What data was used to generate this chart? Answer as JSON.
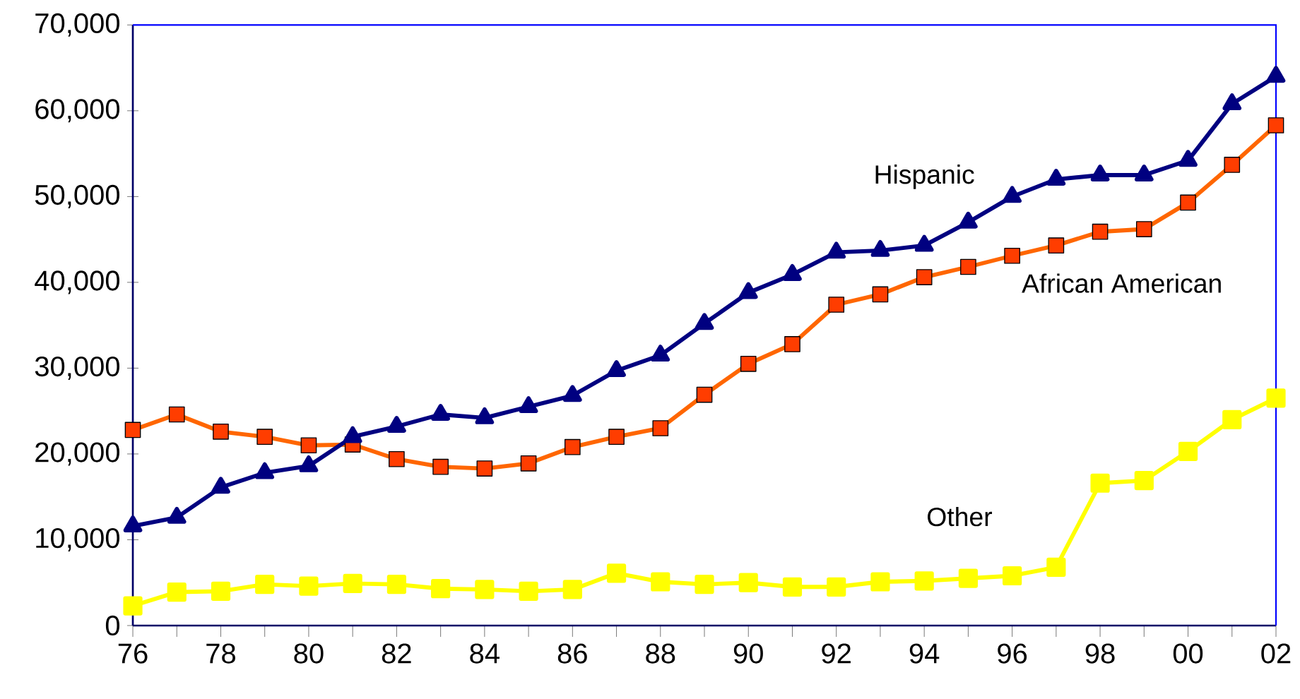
{
  "chart_data": {
    "type": "line",
    "categories": [
      "76",
      null,
      "78",
      null,
      "80",
      null,
      "82",
      null,
      "84",
      null,
      "86",
      null,
      "88",
      null,
      "90",
      null,
      "92",
      null,
      "94",
      null,
      "96",
      null,
      "98",
      null,
      "00",
      null,
      "02"
    ],
    "series": [
      {
        "name": "Hispanic",
        "color": "#000080",
        "marker": "triangle",
        "values": [
          11600,
          12600,
          16100,
          17800,
          18600,
          22000,
          23200,
          24600,
          24200,
          25500,
          26800,
          29700,
          31500,
          35200,
          38800,
          40900,
          43500,
          43700,
          44300,
          47000,
          50000,
          52000,
          52500,
          52500,
          54200,
          60800,
          64000
        ]
      },
      {
        "name": "African American",
        "color": "#ff6600",
        "marker": "square",
        "values": [
          22800,
          24600,
          22600,
          22000,
          21000,
          21100,
          19400,
          18500,
          18300,
          18900,
          20800,
          22000,
          23000,
          26900,
          30500,
          32800,
          37400,
          38600,
          40600,
          41800,
          43100,
          44300,
          45900,
          46200,
          49300,
          53700,
          58300
        ]
      },
      {
        "name": "Other",
        "color": "#ffff00",
        "marker": "square",
        "values": [
          2300,
          3900,
          4000,
          4800,
          4600,
          4900,
          4800,
          4300,
          4200,
          4000,
          4200,
          6100,
          5100,
          4800,
          5000,
          4500,
          4500,
          5100,
          5200,
          5500,
          5800,
          6800,
          16600,
          16900,
          20300,
          24000,
          26500
        ]
      }
    ],
    "ylim": [
      0,
      70000
    ],
    "yticks": [
      {
        "value": 0,
        "label": "0"
      },
      {
        "value": 10000,
        "label": "10,000"
      },
      {
        "value": 20000,
        "label": "20,000"
      },
      {
        "value": 30000,
        "label": "30,000"
      },
      {
        "value": 40000,
        "label": "40,000"
      },
      {
        "value": 50000,
        "label": "50,000"
      },
      {
        "value": 60000,
        "label": "60,000"
      },
      {
        "value": 70000,
        "label": "70,000"
      }
    ],
    "grid": false,
    "legend": false,
    "line_style": "solid"
  }
}
